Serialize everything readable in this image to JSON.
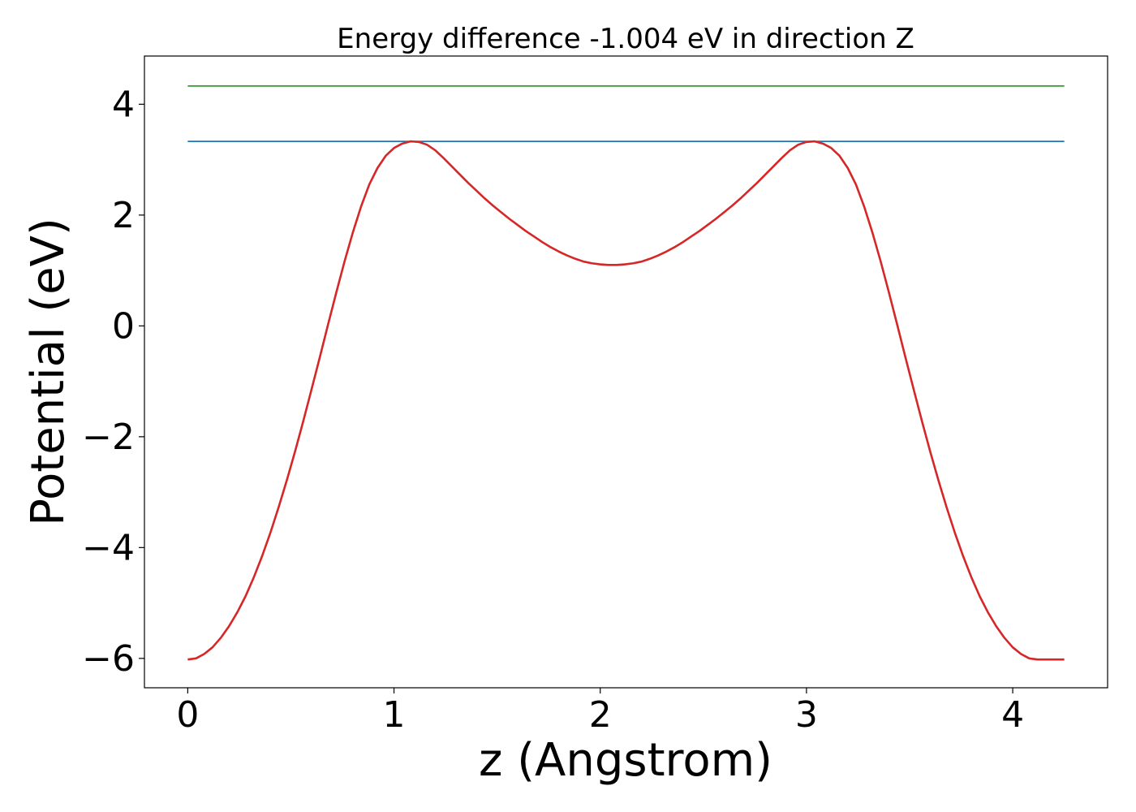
{
  "chart_data": {
    "type": "line",
    "title": "Energy difference -1.004 eV in direction Z",
    "xlabel": "z (Angstrom)",
    "ylabel": "Potential (eV)",
    "xlim": [
      -0.21,
      4.46
    ],
    "ylim": [
      -6.53,
      4.87
    ],
    "x_ticks": [
      0,
      1,
      2,
      3,
      4
    ],
    "x_tick_labels": [
      "0",
      "1",
      "2",
      "3",
      "4"
    ],
    "y_ticks": [
      -6,
      -4,
      -2,
      0,
      2,
      4
    ],
    "y_tick_labels": [
      "−6",
      "−4",
      "−2",
      "0",
      "2",
      "4"
    ],
    "grid": false,
    "series": [
      {
        "color": "#d62728",
        "x": [
          0,
          0.04,
          0.08,
          0.12,
          0.16,
          0.2,
          0.24,
          0.28,
          0.32,
          0.36,
          0.4,
          0.44,
          0.48,
          0.52,
          0.56,
          0.6,
          0.64,
          0.68,
          0.72,
          0.76,
          0.8,
          0.84,
          0.88,
          0.92,
          0.96,
          1.0,
          1.04,
          1.08,
          1.12,
          1.16,
          1.2,
          1.24,
          1.28,
          1.32,
          1.36,
          1.4,
          1.44,
          1.48,
          1.52,
          1.56,
          1.6,
          1.64,
          1.68,
          1.72,
          1.76,
          1.8,
          1.84,
          1.88,
          1.92,
          1.96,
          2.0,
          2.04,
          2.08,
          2.12,
          2.16,
          2.2,
          2.24,
          2.28,
          2.32,
          2.36,
          2.4,
          2.44,
          2.48,
          2.52,
          2.56,
          2.6,
          2.64,
          2.68,
          2.72,
          2.76,
          2.8,
          2.84,
          2.88,
          2.92,
          2.96,
          3.0,
          3.04,
          3.08,
          3.12,
          3.16,
          3.2,
          3.24,
          3.28,
          3.32,
          3.36,
          3.4,
          3.44,
          3.48,
          3.52,
          3.56,
          3.6,
          3.64,
          3.68,
          3.72,
          3.76,
          3.8,
          3.84,
          3.88,
          3.92,
          3.96,
          4.0,
          4.04,
          4.08,
          4.12,
          4.16,
          4.2,
          4.25
        ],
        "y": [
          -6.02,
          -6.0,
          -5.92,
          -5.8,
          -5.63,
          -5.42,
          -5.17,
          -4.88,
          -4.54,
          -4.16,
          -3.74,
          -3.28,
          -2.79,
          -2.27,
          -1.72,
          -1.15,
          -0.57,
          0.02,
          0.6,
          1.16,
          1.68,
          2.15,
          2.55,
          2.85,
          3.07,
          3.21,
          3.29,
          3.33,
          3.32,
          3.27,
          3.17,
          3.03,
          2.88,
          2.73,
          2.58,
          2.44,
          2.3,
          2.17,
          2.05,
          1.93,
          1.82,
          1.71,
          1.61,
          1.51,
          1.42,
          1.34,
          1.27,
          1.21,
          1.16,
          1.13,
          1.11,
          1.1,
          1.1,
          1.11,
          1.13,
          1.16,
          1.21,
          1.27,
          1.34,
          1.42,
          1.51,
          1.61,
          1.71,
          1.82,
          1.93,
          2.05,
          2.17,
          2.3,
          2.44,
          2.58,
          2.73,
          2.88,
          3.03,
          3.17,
          3.27,
          3.32,
          3.33,
          3.29,
          3.21,
          3.07,
          2.85,
          2.55,
          2.15,
          1.68,
          1.16,
          0.6,
          0.02,
          -0.57,
          -1.15,
          -1.72,
          -2.27,
          -2.79,
          -3.28,
          -3.74,
          -4.16,
          -4.54,
          -4.88,
          -5.17,
          -5.42,
          -5.63,
          -5.8,
          -5.92,
          -6.0,
          -6.02,
          -6.02,
          -6.02,
          -6.02
        ]
      },
      {
        "color": "#1f77b4",
        "x": [
          0,
          4.25
        ],
        "y": [
          3.33,
          3.33
        ]
      },
      {
        "color": "#2ca02c",
        "x": [
          0,
          4.25
        ],
        "y": [
          4.33,
          4.33
        ]
      }
    ]
  }
}
